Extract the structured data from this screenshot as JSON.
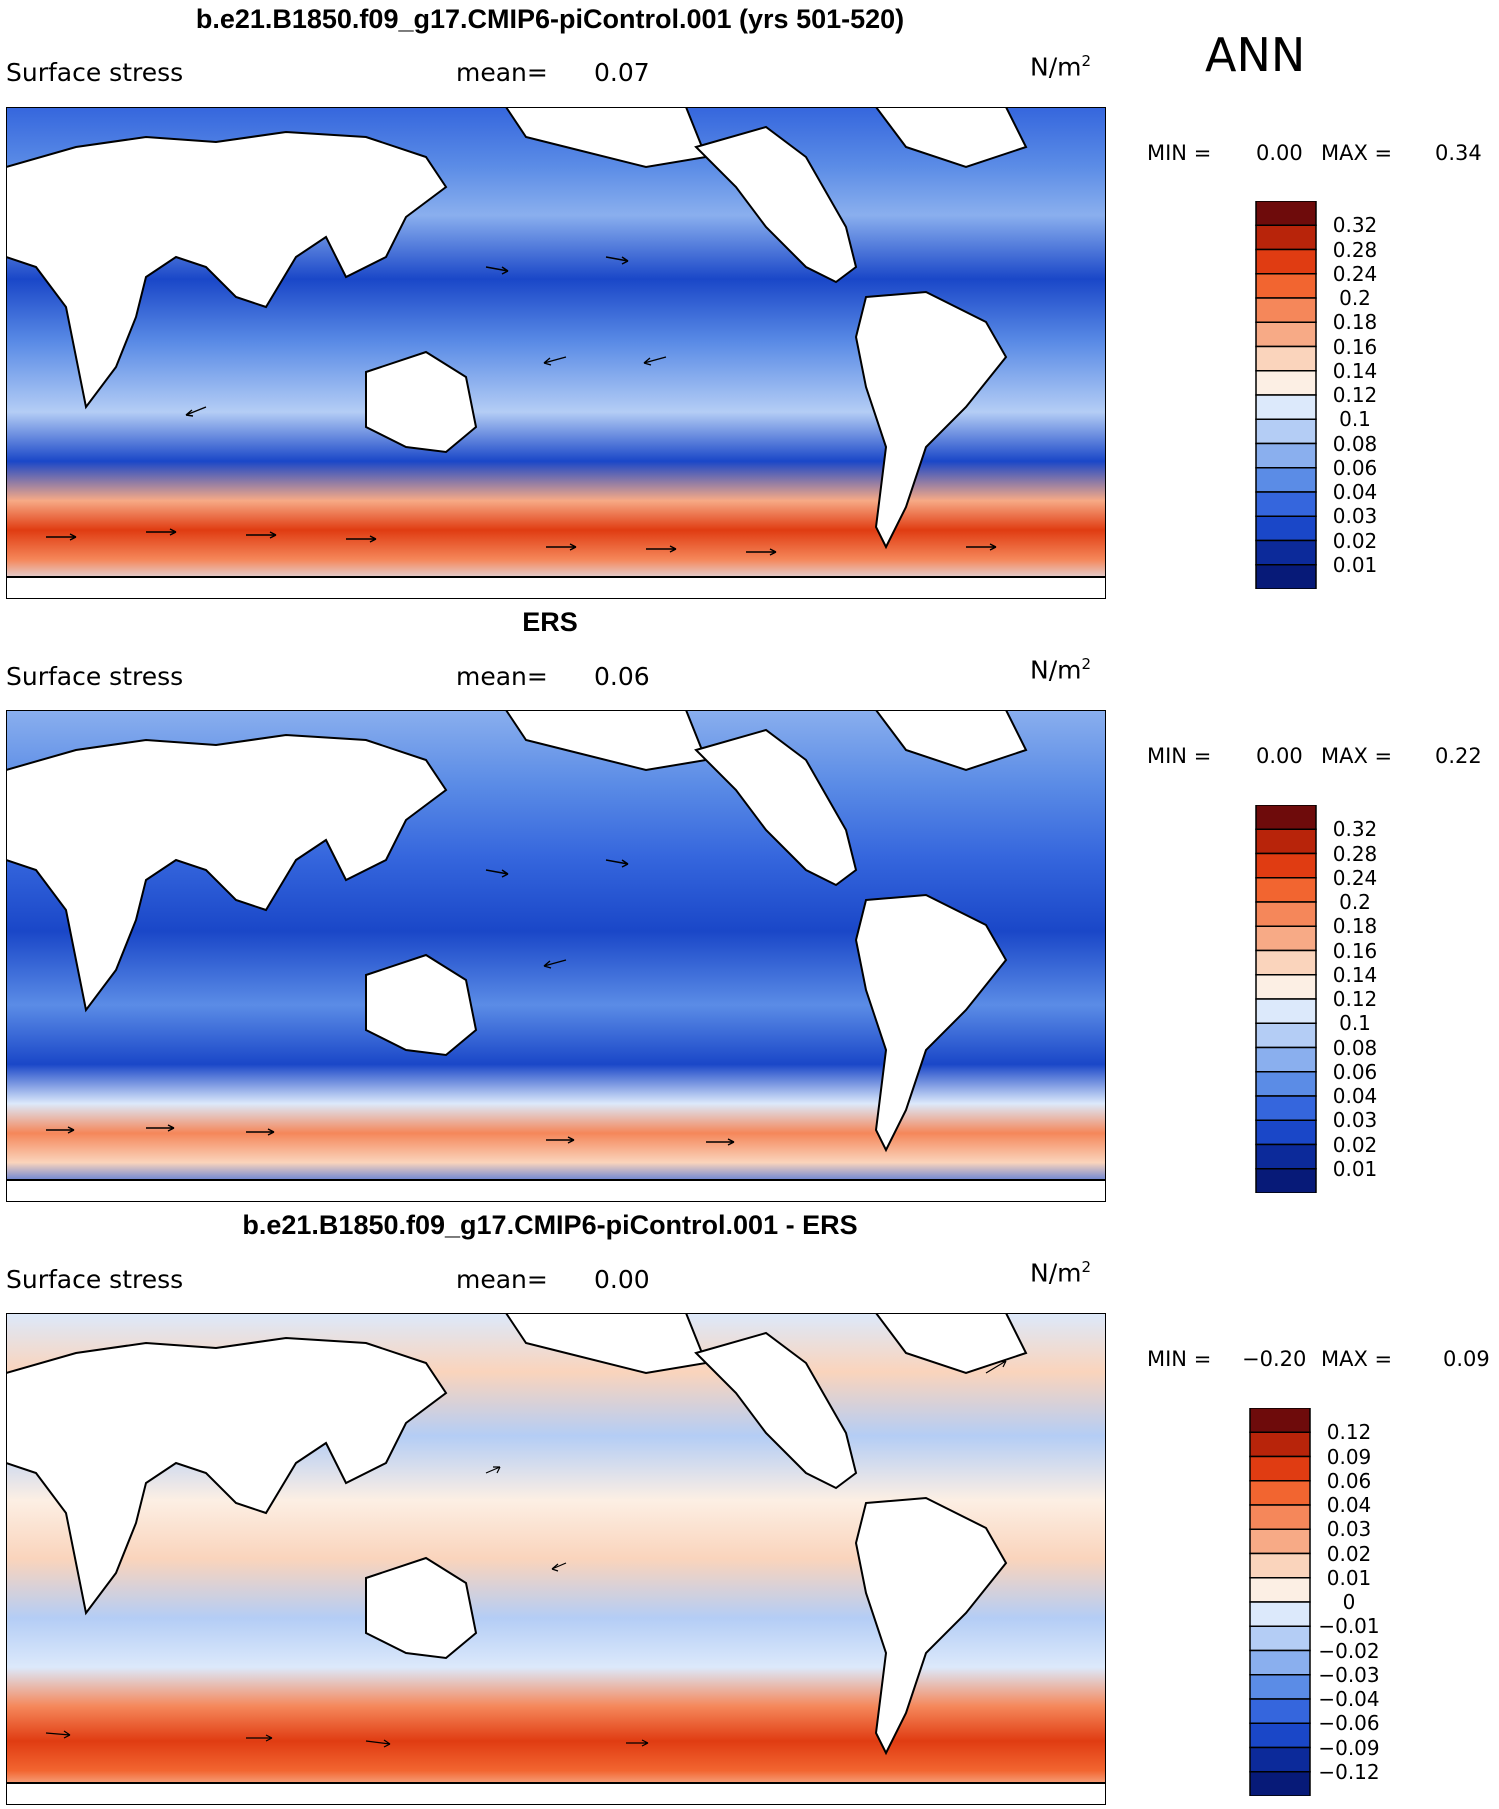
{
  "season": "ANN",
  "panels": [
    {
      "title": "b.e21.B1850.f09_g17.CMIP6-piControl.001 (yrs 501-520)",
      "variable": "Surface stress",
      "mean_label": "mean=",
      "mean_value": "0.07",
      "units": "N/m",
      "units_sup": "2",
      "min_label": "MIN =",
      "min_value": "0.00",
      "max_label": "MAX =",
      "max_value": "0.34",
      "colorbar": {
        "levels": [
          "0.32",
          "0.28",
          "0.24",
          "0.2",
          "0.18",
          "0.16",
          "0.14",
          "0.12",
          "0.1",
          "0.08",
          "0.06",
          "0.04",
          "0.03",
          "0.02",
          "0.01"
        ],
        "colors": [
          "#6e0b0b",
          "#b8240a",
          "#e03c12",
          "#f26530",
          "#f5875a",
          "#f7aa86",
          "#fad4bc",
          "#fcefe4",
          "#dce9fb",
          "#b4cdf5",
          "#8aafee",
          "#5b8ce6",
          "#3566dd",
          "#1a47c8",
          "#0c2a9a",
          "#071a78"
        ]
      }
    },
    {
      "title": "ERS",
      "variable": "Surface stress",
      "mean_label": "mean=",
      "mean_value": "0.06",
      "units": "N/m",
      "units_sup": "2",
      "min_label": "MIN =",
      "min_value": "0.00",
      "max_label": "MAX =",
      "max_value": "0.22",
      "colorbar": {
        "levels": [
          "0.32",
          "0.28",
          "0.24",
          "0.2",
          "0.18",
          "0.16",
          "0.14",
          "0.12",
          "0.1",
          "0.08",
          "0.06",
          "0.04",
          "0.03",
          "0.02",
          "0.01"
        ],
        "colors": [
          "#6e0b0b",
          "#b8240a",
          "#e03c12",
          "#f26530",
          "#f5875a",
          "#f7aa86",
          "#fad4bc",
          "#fcefe4",
          "#dce9fb",
          "#b4cdf5",
          "#8aafee",
          "#5b8ce6",
          "#3566dd",
          "#1a47c8",
          "#0c2a9a",
          "#071a78"
        ]
      }
    },
    {
      "title": "b.e21.B1850.f09_g17.CMIP6-piControl.001 - ERS",
      "variable": "Surface stress",
      "mean_label": "mean=",
      "mean_value": "0.00",
      "units": "N/m",
      "units_sup": "2",
      "min_label": "MIN =",
      "min_value": "−0.20",
      "max_label": "MAX =",
      "max_value": "0.09",
      "colorbar": {
        "levels": [
          "0.12",
          "0.09",
          "0.06",
          "0.04",
          "0.03",
          "0.02",
          "0.01",
          "0",
          "−0.01",
          "−0.02",
          "−0.03",
          "−0.04",
          "−0.06",
          "−0.09",
          "−0.12"
        ],
        "colors": [
          "#6e0b0b",
          "#b8240a",
          "#e03c12",
          "#f26530",
          "#f5875a",
          "#f7aa86",
          "#fad4bc",
          "#fcefe4",
          "#dce9fb",
          "#b4cdf5",
          "#8aafee",
          "#5b8ce6",
          "#3566dd",
          "#1a47c8",
          "#0c2a9a",
          "#071a78"
        ]
      }
    }
  ]
}
